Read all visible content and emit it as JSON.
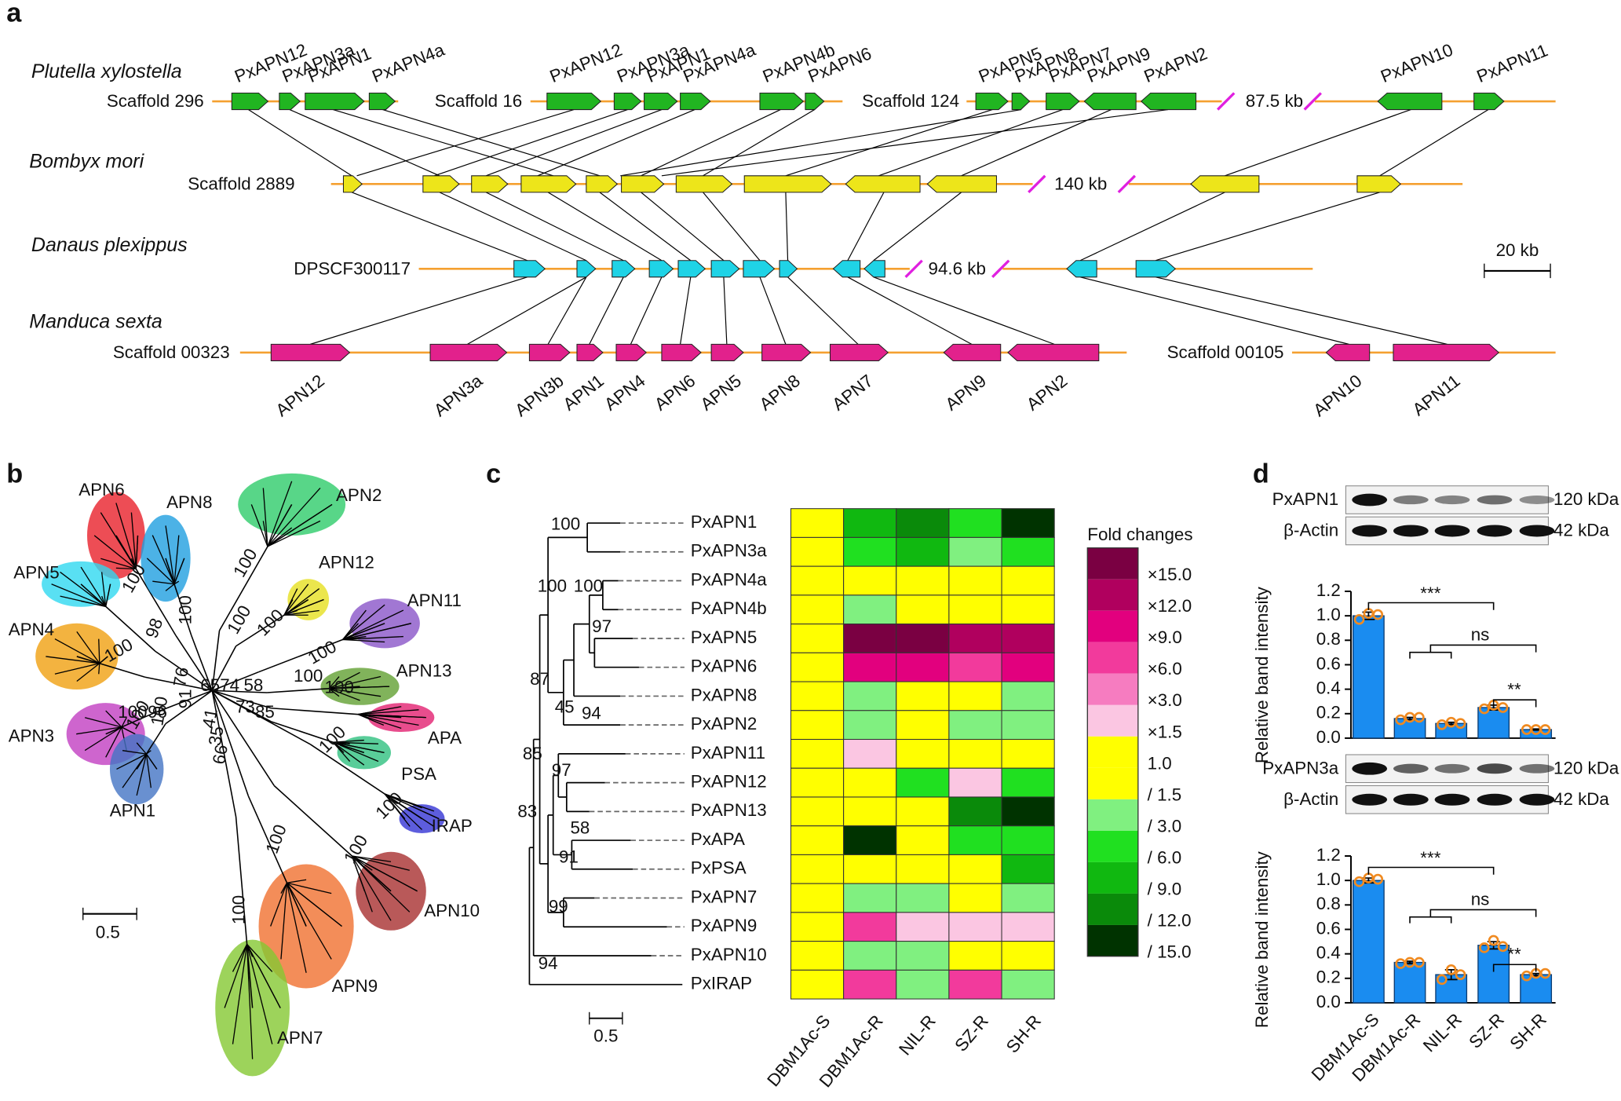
{
  "panel_labels": [
    "a",
    "b",
    "c",
    "d"
  ],
  "synteny": {
    "rows": [
      {
        "species": "Plutella xylostella",
        "color": "#21b521",
        "scaffolds": [
          "Scaffold 296",
          "Scaffold 16",
          "Scaffold 124"
        ],
        "gaps": [
          "87.5 kb"
        ],
        "genes": [
          "PxAPN12",
          "PxAPN3a",
          "PxAPN1",
          "PxAPN4a",
          "PxAPN12",
          "PxAPN3a",
          "PxAPN1",
          "PxAPN4a",
          "PxAPN4b",
          "PxAPN6",
          "PxAPN5",
          "PxAPN8",
          "PxAPN7",
          "PxAPN9",
          "PxAPN2",
          "PxAPN10",
          "PxAPN11"
        ]
      },
      {
        "species": "Bombyx mori",
        "color": "#ede51a",
        "scaffolds": [
          "Scaffold 2889"
        ],
        "gaps": [
          "140 kb"
        ]
      },
      {
        "species": "Danaus plexippus",
        "color": "#1fd3e6",
        "scaffolds": [
          "DPSCF300117"
        ],
        "gaps": [
          "94.6 kb"
        ]
      },
      {
        "species": "Manduca sexta",
        "color": "#e2218c",
        "scaffolds": [
          "Scaffold 00323",
          "Scaffold 00105"
        ],
        "gaps": [],
        "genes": [
          "APN12",
          "APN3a",
          "APN3b",
          "APN1",
          "APN4",
          "APN6",
          "APN5",
          "APN8",
          "APN7",
          "APN9",
          "APN2",
          "APN10",
          "APN11"
        ]
      }
    ],
    "scale": "20 kb"
  },
  "tree": {
    "clades": [
      {
        "label": "APN6",
        "color": "#e8202a"
      },
      {
        "label": "APN8",
        "color": "#1f9fe0"
      },
      {
        "label": "APN2",
        "color": "#2ecc6a"
      },
      {
        "label": "APN12",
        "color": "#e6e020"
      },
      {
        "label": "APN11",
        "color": "#8a55c8"
      },
      {
        "label": "APN5",
        "color": "#30d8f0"
      },
      {
        "label": "APN4",
        "color": "#f0a010"
      },
      {
        "label": "APN13",
        "color": "#62a032"
      },
      {
        "label": "APN3",
        "color": "#c23fc2"
      },
      {
        "label": "APA",
        "color": "#e22070"
      },
      {
        "label": "PSA",
        "color": "#30c080"
      },
      {
        "label": "APN1",
        "color": "#4474c4"
      },
      {
        "label": "IRAP",
        "color": "#3434d4"
      },
      {
        "label": "APN10",
        "color": "#a83030"
      },
      {
        "label": "APN9",
        "color": "#f07030"
      },
      {
        "label": "APN7",
        "color": "#84c832"
      }
    ],
    "bootstrap": [
      "100",
      "98",
      "100",
      "100",
      "100",
      "100",
      "100",
      "100",
      "96",
      "76",
      "91",
      "65",
      "74",
      "58",
      "41",
      "35",
      "66",
      "73",
      "85",
      "100",
      "100",
      "100",
      "100",
      "100",
      "100",
      "100",
      "100",
      "100",
      "100"
    ],
    "scale": "0.5"
  },
  "heatmap": {
    "rows": [
      "PxAPN1",
      "PxAPN3a",
      "PxAPN4a",
      "PxAPN4b",
      "PxAPN5",
      "PxAPN6",
      "PxAPN8",
      "PxAPN2",
      "PxAPN11",
      "PxAPN12",
      "PxAPN13",
      "PxAPA",
      "PxPSA",
      "PxAPN7",
      "PxAPN9",
      "PxAPN10",
      "PxIRAP"
    ],
    "columns": [
      "DBM1Ac-S",
      "DBM1Ac-R",
      "NIL-R",
      "SZ-R",
      "SH-R"
    ],
    "cells": [
      [
        "1.0",
        "/ 9.0",
        "/ 12.0",
        "/ 6.0",
        "/ 15.0"
      ],
      [
        "1.0",
        "/ 6.0",
        "/ 9.0",
        "/ 3.0",
        "/ 6.0"
      ],
      [
        "1.0",
        "1.0",
        "1.0",
        "1.0",
        "1.0"
      ],
      [
        "1.0",
        "/ 3.0",
        "1.0",
        "1.0",
        "1.0"
      ],
      [
        "1.0",
        "×15.0",
        "×15.0",
        "×12.0",
        "×12.0"
      ],
      [
        "1.0",
        "×9.0",
        "×9.0",
        "×6.0",
        "×9.0"
      ],
      [
        "1.0",
        "/ 3.0",
        "1.0",
        "1.0",
        "/ 3.0"
      ],
      [
        "1.0",
        "/ 3.0",
        "1.0",
        "/ 3.0",
        "/ 3.0"
      ],
      [
        "1.0",
        "×1.5",
        "1.0",
        "1.0",
        "1.0"
      ],
      [
        "1.0",
        "1.0",
        "/ 6.0",
        "×1.5",
        "/ 6.0"
      ],
      [
        "1.0",
        "1.0",
        "1.0",
        "/ 12.0",
        "/ 15.0"
      ],
      [
        "1.0",
        "/ 15.0",
        "1.0",
        "/ 6.0",
        "/ 6.0"
      ],
      [
        "1.0",
        "1.0",
        "1.0",
        "1.0",
        "/ 9.0"
      ],
      [
        "1.0",
        "/ 3.0",
        "/ 3.0",
        "1.0",
        "/ 3.0"
      ],
      [
        "1.0",
        "×6.0",
        "×1.5",
        "×1.5",
        "×1.5"
      ],
      [
        "1.0",
        "/ 3.0",
        "/ 3.0",
        "1.0",
        "1.0"
      ],
      [
        "1.0",
        "×6.0",
        "/ 3.0",
        "×6.0",
        "/ 3.0"
      ]
    ],
    "legend_title": "Fold changes",
    "levels": [
      {
        "label": "×15.0",
        "color": "#7a0042"
      },
      {
        "label": "×12.0",
        "color": "#b0005e"
      },
      {
        "label": "×9.0",
        "color": "#e2007e"
      },
      {
        "label": "×6.0",
        "color": "#f23a9c"
      },
      {
        "label": "×3.0",
        "color": "#f67cc0"
      },
      {
        "label": "×1.5",
        "color": "#fbc6e2"
      },
      {
        "label": "1.0",
        "color": "#ffff00"
      },
      {
        "label": "/ 1.5",
        "color": "#ffff00"
      },
      {
        "label": "/ 3.0",
        "color": "#80f080"
      },
      {
        "label": "/ 6.0",
        "color": "#20e020"
      },
      {
        "label": "/ 9.0",
        "color": "#10b810"
      },
      {
        "label": "/ 12.0",
        "color": "#0a8a0a"
      },
      {
        "label": "/ 15.0",
        "color": "#003300"
      }
    ],
    "bootstrap": [
      "100",
      "100",
      "100",
      "97",
      "87",
      "45",
      "94",
      "85",
      "97",
      "58",
      "83",
      "91",
      "99",
      "94"
    ],
    "scale": "0.5"
  },
  "chart_data": [
    {
      "type": "bar",
      "title": "PxAPN1",
      "target_size": "120 kDa",
      "control": "β-Actin",
      "control_size": "42 kDa",
      "ylabel": "Relative band intensity",
      "color": "#1a8cf0",
      "point_color": "#f08a20",
      "ylim": [
        0,
        1.2
      ],
      "yticks": [
        {
          "value": 0,
          "label": "0.0"
        },
        0.2,
        0.4,
        0.6,
        0.8,
        {
          "value": 1,
          "label": "1.0"
        },
        1.2
      ],
      "values": [
        1.0,
        0.16,
        0.12,
        0.25,
        0.07
      ],
      "errors": [
        0.03,
        0.01,
        0.01,
        0.02,
        0.005
      ],
      "points": [
        [
          0.97,
          1.02,
          1.01
        ],
        [
          0.15,
          0.17,
          0.17
        ],
        [
          0.11,
          0.13,
          0.12
        ],
        [
          0.24,
          0.27,
          0.25
        ],
        [
          0.07,
          0.07,
          0.07
        ]
      ],
      "annotations": [
        "***",
        "ns",
        "**"
      ]
    },
    {
      "type": "bar",
      "title": "PxAPN3a",
      "target_size": "120 kDa",
      "control": "β-Actin",
      "control_size": "42 kDa",
      "ylabel": "Relative band intensity",
      "color": "#1a8cf0",
      "point_color": "#f08a20",
      "ylim": [
        0,
        1.2
      ],
      "yticks": [
        {
          "value": 0,
          "label": "0.0"
        },
        0.2,
        0.4,
        0.6,
        0.8,
        {
          "value": 1,
          "label": "1.0"
        },
        1.2
      ],
      "categories": [
        "DBM1Ac-S",
        "DBM1Ac-R",
        "NIL-R",
        "SZ-R",
        "SH-R"
      ],
      "values": [
        1.0,
        0.33,
        0.23,
        0.47,
        0.23
      ],
      "errors": [
        0.02,
        0.01,
        0.04,
        0.03,
        0.01
      ],
      "points": [
        [
          0.99,
          1.02,
          1.01
        ],
        [
          0.32,
          0.33,
          0.33
        ],
        [
          0.19,
          0.27,
          0.23
        ],
        [
          0.45,
          0.51,
          0.46
        ],
        [
          0.22,
          0.24,
          0.24
        ]
      ],
      "annotations": [
        "***",
        "ns",
        "**"
      ]
    }
  ]
}
